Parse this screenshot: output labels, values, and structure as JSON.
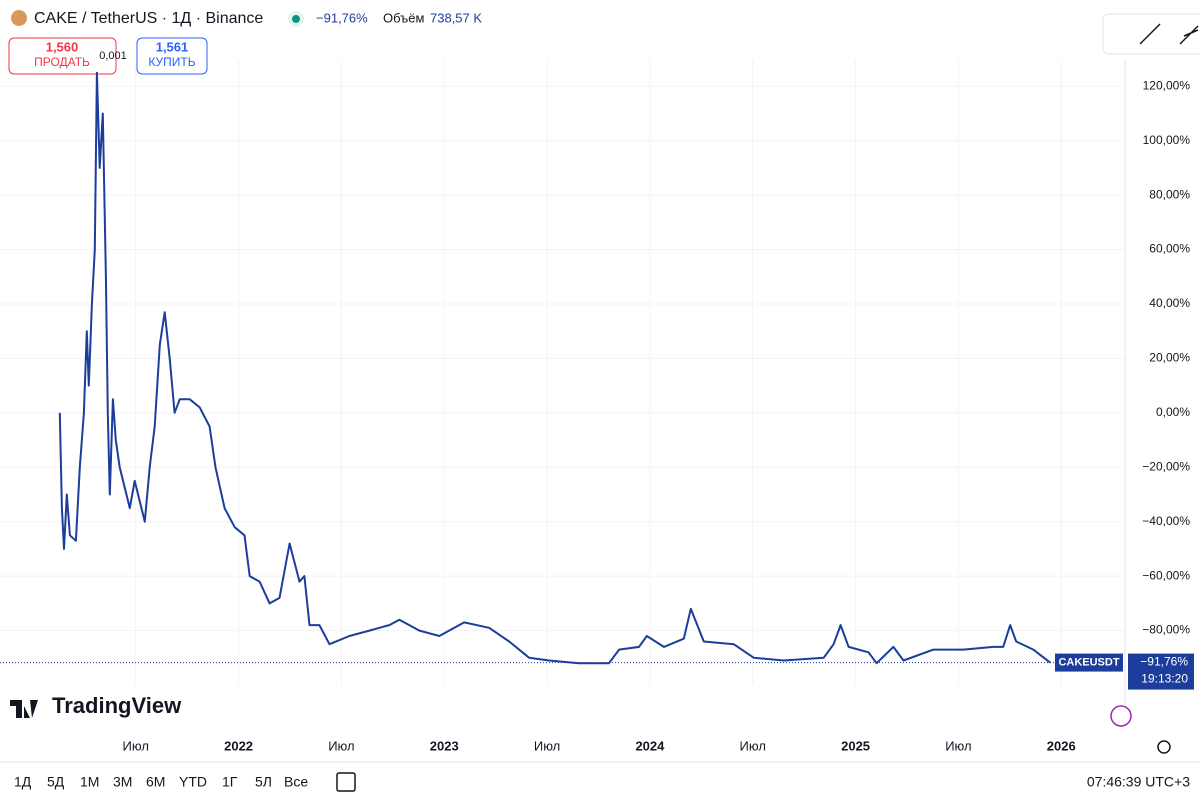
{
  "header": {
    "symbol": "CAKE / TetherUS · 1Д · Binance",
    "change": "−91,76%",
    "volume_label": "Объём",
    "volume": "738,57 K"
  },
  "trade": {
    "sell_price": "1,560",
    "sell_label": "ПРОДАТЬ",
    "spread": "0,001",
    "buy_price": "1,561",
    "buy_label": "КУПИТЬ"
  },
  "logo": "TradingView",
  "ranges": [
    "1Д",
    "5Д",
    "1M",
    "3M",
    "6M",
    "YTD",
    "1Г",
    "5Л",
    "Все"
  ],
  "clock": "07:46:39 UTC+3",
  "chart_data": {
    "type": "line",
    "series": [
      {
        "name": "CAKEUSDT",
        "color": "#1c3d9c",
        "x": [
          2021.131,
          2021.141,
          2021.151,
          2021.165,
          2021.18,
          2021.209,
          2021.228,
          2021.248,
          2021.262,
          2021.272,
          2021.287,
          2021.301,
          2021.311,
          2021.325,
          2021.34,
          2021.355,
          2021.364,
          2021.374,
          2021.389,
          2021.403,
          2021.422,
          2021.471,
          2021.495,
          2021.544,
          2021.568,
          2021.592,
          2021.617,
          2021.641,
          2021.665,
          2021.689,
          2021.714,
          2021.762,
          2021.811,
          2021.859,
          2021.888,
          2021.932,
          2021.981,
          2022.029,
          2022.054,
          2022.102,
          2022.151,
          2022.199,
          2022.248,
          2022.296,
          2022.32,
          2022.345,
          2022.393,
          2022.442,
          2022.539,
          2022.636,
          2022.733,
          2022.782,
          2022.879,
          2022.976,
          2023.097,
          2023.218,
          2023.316,
          2023.413,
          2023.51,
          2023.655,
          2023.801,
          2023.85,
          2023.947,
          2023.985,
          2024.068,
          2024.165,
          2024.199,
          2024.262,
          2024.408,
          2024.505,
          2024.651,
          2024.845,
          2024.893,
          2024.927,
          2024.966,
          2025.063,
          2025.102,
          2025.184,
          2025.233,
          2025.379,
          2025.524,
          2025.67,
          2025.718,
          2025.752,
          2025.781,
          2025.864,
          2025.946
        ],
        "values": [
          0,
          -35,
          -50,
          -30,
          -45,
          -47,
          -20,
          0,
          30,
          10,
          40,
          60,
          125,
          90,
          110,
          50,
          0,
          -30,
          5,
          -10,
          -20,
          -35,
          -25,
          -40,
          -20,
          -5,
          25,
          37,
          20,
          0,
          5,
          5,
          2,
          -5,
          -20,
          -35,
          -42,
          -45,
          -60,
          -62,
          -70,
          -68,
          -48,
          -62,
          -60,
          -78,
          -78,
          -85,
          -82,
          -80,
          -78,
          -76,
          -80,
          -82,
          -77,
          -79,
          -84,
          -90,
          -91,
          -92,
          -92,
          -87,
          -86,
          -82,
          -86,
          -83,
          -72,
          -84,
          -85,
          -90,
          -91,
          -90,
          -85,
          -78,
          -86,
          -88,
          -92,
          -86,
          -91,
          -87,
          -87,
          -86,
          -86,
          -78,
          -84,
          -87,
          -91.76
        ]
      }
    ],
    "last_value_label": "−91,76%",
    "last_time": "19:13:20",
    "xlim": [
      2020.84,
      2026.31
    ],
    "xticks": [
      {
        "value": 2021.5,
        "label": "Июл"
      },
      2022,
      {
        "value": 2022.5,
        "label": "Июл"
      },
      2023,
      {
        "value": 2023.5,
        "label": "Июл"
      },
      2024,
      {
        "value": 2024.5,
        "label": "Июл"
      },
      2025,
      {
        "value": 2025.5,
        "label": "Июл"
      },
      2026
    ],
    "ylim": [
      -100,
      137
    ],
    "yticks": [
      {
        "value": 120,
        "label": "120,00%"
      },
      {
        "value": 100,
        "label": "100,00%"
      },
      {
        "value": 80,
        "label": "80,00%"
      },
      {
        "value": 60,
        "label": "60,00%"
      },
      {
        "value": 40,
        "label": "40,00%"
      },
      {
        "value": 20,
        "label": "20,00%"
      },
      {
        "value": 0,
        "label": "0,00%"
      },
      {
        "value": -20,
        "label": "−20,00%"
      },
      {
        "value": -40,
        "label": "−40,00%"
      },
      {
        "value": -60,
        "label": "−60,00%"
      },
      {
        "value": -80,
        "label": "−80,00%"
      }
    ],
    "grid": true
  }
}
